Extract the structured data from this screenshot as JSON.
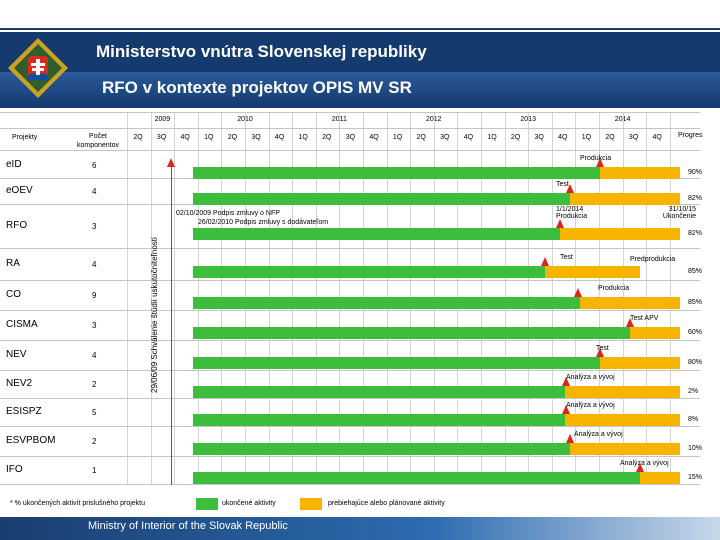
{
  "header": {
    "title": "Ministerstvo vnútra Slovenskej republiky",
    "subtitle": "RFO v kontexte projektov OPIS MV SR"
  },
  "table": {
    "col_projects": "Projekty",
    "col_count": "Počet komponentov",
    "col_progress": "Progres",
    "years": [
      "2009",
      "2010",
      "2011",
      "2012",
      "2013",
      "2014"
    ],
    "quarters": [
      "2Q",
      "3Q",
      "4Q",
      "1Q",
      "2Q",
      "3Q",
      "4Q",
      "1Q",
      "2Q",
      "3Q",
      "4Q",
      "1Q",
      "2Q",
      "3Q",
      "4Q",
      "1Q",
      "2Q",
      "3Q",
      "4Q",
      "1Q",
      "2Q",
      "3Q",
      "4Q"
    ],
    "rows": [
      {
        "name": "eID",
        "count": "6",
        "label": "Produkcia",
        "progress": "90%"
      },
      {
        "name": "eOEV",
        "count": "4",
        "label": "Test",
        "progress": "82%"
      },
      {
        "name": "RFO",
        "count": "3",
        "label": "1/1/2014 Produkcia",
        "label2": "31/10/15 Ukončenie",
        "progress": "82%"
      },
      {
        "name": "RA",
        "count": "4",
        "label": "Test",
        "label2": "Predprodukcia",
        "progress": "85%"
      },
      {
        "name": "CO",
        "count": "9",
        "label": "Produkcia",
        "progress": "85%"
      },
      {
        "name": "CISMA",
        "count": "3",
        "label": "Test APV",
        "progress": "60%"
      },
      {
        "name": "NEV",
        "count": "4",
        "label": "Test",
        "progress": "80%"
      },
      {
        "name": "NEV2",
        "count": "2",
        "label": "Analýza a vývoj",
        "progress": "2%"
      },
      {
        "name": "ESISPZ",
        "count": "5",
        "label": "Analýza a vývoj",
        "progress": "8%"
      },
      {
        "name": "ESVPBOM",
        "count": "2",
        "label": "Analýza a vývoj",
        "progress": "10%"
      },
      {
        "name": "IFO",
        "count": "1",
        "label": "Analýza a vývoj",
        "progress": "15%"
      }
    ],
    "notes": {
      "vertical": "29/06/09 Schválenie štúdií uskutočniteľnosti",
      "nfp1": "02/10/2009 Podpis zmluvy o NFP",
      "nfp2": "26/02/2010 Podpis zmluvy s dodávateľom"
    }
  },
  "legend": {
    "footnote": "* % ukončených aktivít prislušného projektu",
    "done": "ukončené aktivity",
    "planned": "prebiehajúce alebo plánované aktivity",
    "done_color": "#3cbd3c",
    "planned_color": "#f6b400"
  },
  "footer": {
    "text": "Ministry of Interior of the Slovak Republic"
  },
  "colors": {
    "header_blue": "#143a6e",
    "milestone_red": "#e0241a"
  }
}
